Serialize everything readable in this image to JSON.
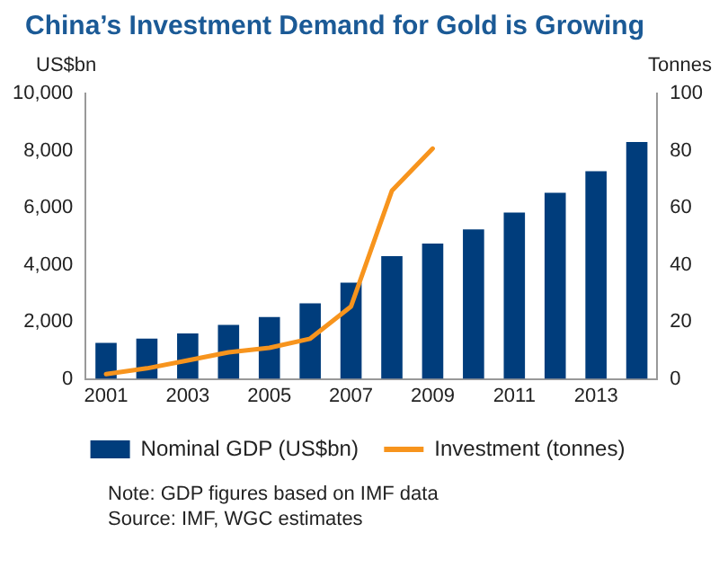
{
  "chart_data": {
    "type": "bar",
    "title": "China’s Investment Demand for Gold is Growing",
    "categories": [
      "2001",
      null,
      "2003",
      null,
      "2005",
      null,
      "2007",
      null,
      "2009",
      null,
      "2011",
      null,
      "2013",
      null
    ],
    "series": [
      {
        "name": "Nominal GDP (US$bn)",
        "color": "#003d7c",
        "values": [
          1260,
          1410,
          1590,
          1890,
          2170,
          2650,
          3370,
          4300,
          4740,
          5240,
          5830,
          6520,
          7280,
          8300
        ]
      },
      {
        "name": "Investment (tonnes)",
        "type": "line",
        "axis": "y2",
        "color": "#f7941d",
        "values": [
          1.7,
          3.7,
          6.5,
          9.3,
          10.9,
          14.1,
          25.4,
          65.9,
          80.7,
          null,
          null,
          null,
          null,
          null
        ]
      }
    ],
    "ylabel": "US$bn",
    "y2label": "Tonnes",
    "ylim": [
      0,
      10000
    ],
    "yticks": [
      {
        "value": 0,
        "label": "0"
      },
      {
        "value": 2000,
        "label": "2,000"
      },
      {
        "value": 4000,
        "label": "4,000"
      },
      {
        "value": 6000,
        "label": "6,000"
      },
      {
        "value": 8000,
        "label": "8,000"
      },
      {
        "value": 10000,
        "label": "10,000"
      }
    ],
    "y2lim": [
      0,
      100
    ],
    "y2ticks": [
      0,
      20,
      40,
      60,
      80,
      100
    ],
    "grid": false,
    "legend": "bottom",
    "marker": "none",
    "annotations": [
      "Note: GDP figures based on IMF data",
      "Source: IMF, WGC estimates"
    ]
  }
}
